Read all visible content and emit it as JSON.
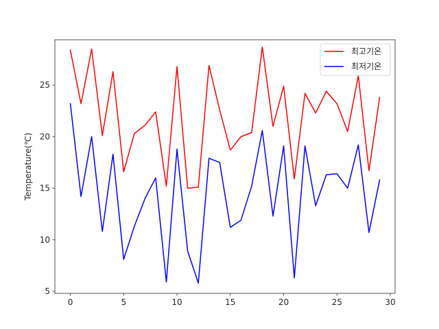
{
  "chart_data": {
    "type": "line",
    "title": "",
    "xlabel": "",
    "ylabel": "Temperature(℃)",
    "xlim": [
      -1.45,
      30.45
    ],
    "ylim": [
      4.8,
      29.4
    ],
    "xticks": [
      0,
      5,
      10,
      15,
      20,
      25,
      30
    ],
    "yticks": [
      5,
      10,
      15,
      20,
      25
    ],
    "grid": false,
    "legend_position": "top-right",
    "x": [
      0,
      1,
      2,
      3,
      4,
      5,
      6,
      7,
      8,
      9,
      10,
      11,
      12,
      13,
      14,
      15,
      16,
      17,
      18,
      19,
      20,
      21,
      22,
      23,
      24,
      25,
      26,
      27,
      28,
      29
    ],
    "series": [
      {
        "name": "최고기온",
        "color": "#ff0000",
        "values": [
          28.4,
          23.2,
          28.5,
          20.1,
          26.3,
          16.6,
          20.3,
          21.1,
          22.4,
          15.2,
          26.8,
          15.0,
          15.1,
          26.9,
          22.6,
          18.7,
          20.0,
          20.4,
          28.7,
          21.0,
          24.9,
          15.9,
          24.2,
          22.3,
          24.4,
          23.2,
          20.5,
          25.9,
          16.7,
          23.8
        ]
      },
      {
        "name": "최저기온",
        "color": "#0000ff",
        "values": [
          23.2,
          14.2,
          20.0,
          10.8,
          18.3,
          8.1,
          11.3,
          14.0,
          16.0,
          5.9,
          18.8,
          8.9,
          5.8,
          17.9,
          17.5,
          11.2,
          11.9,
          15.2,
          20.6,
          12.3,
          19.1,
          6.3,
          19.1,
          13.3,
          16.3,
          16.4,
          15.0,
          19.2,
          10.7,
          15.8
        ]
      }
    ]
  }
}
